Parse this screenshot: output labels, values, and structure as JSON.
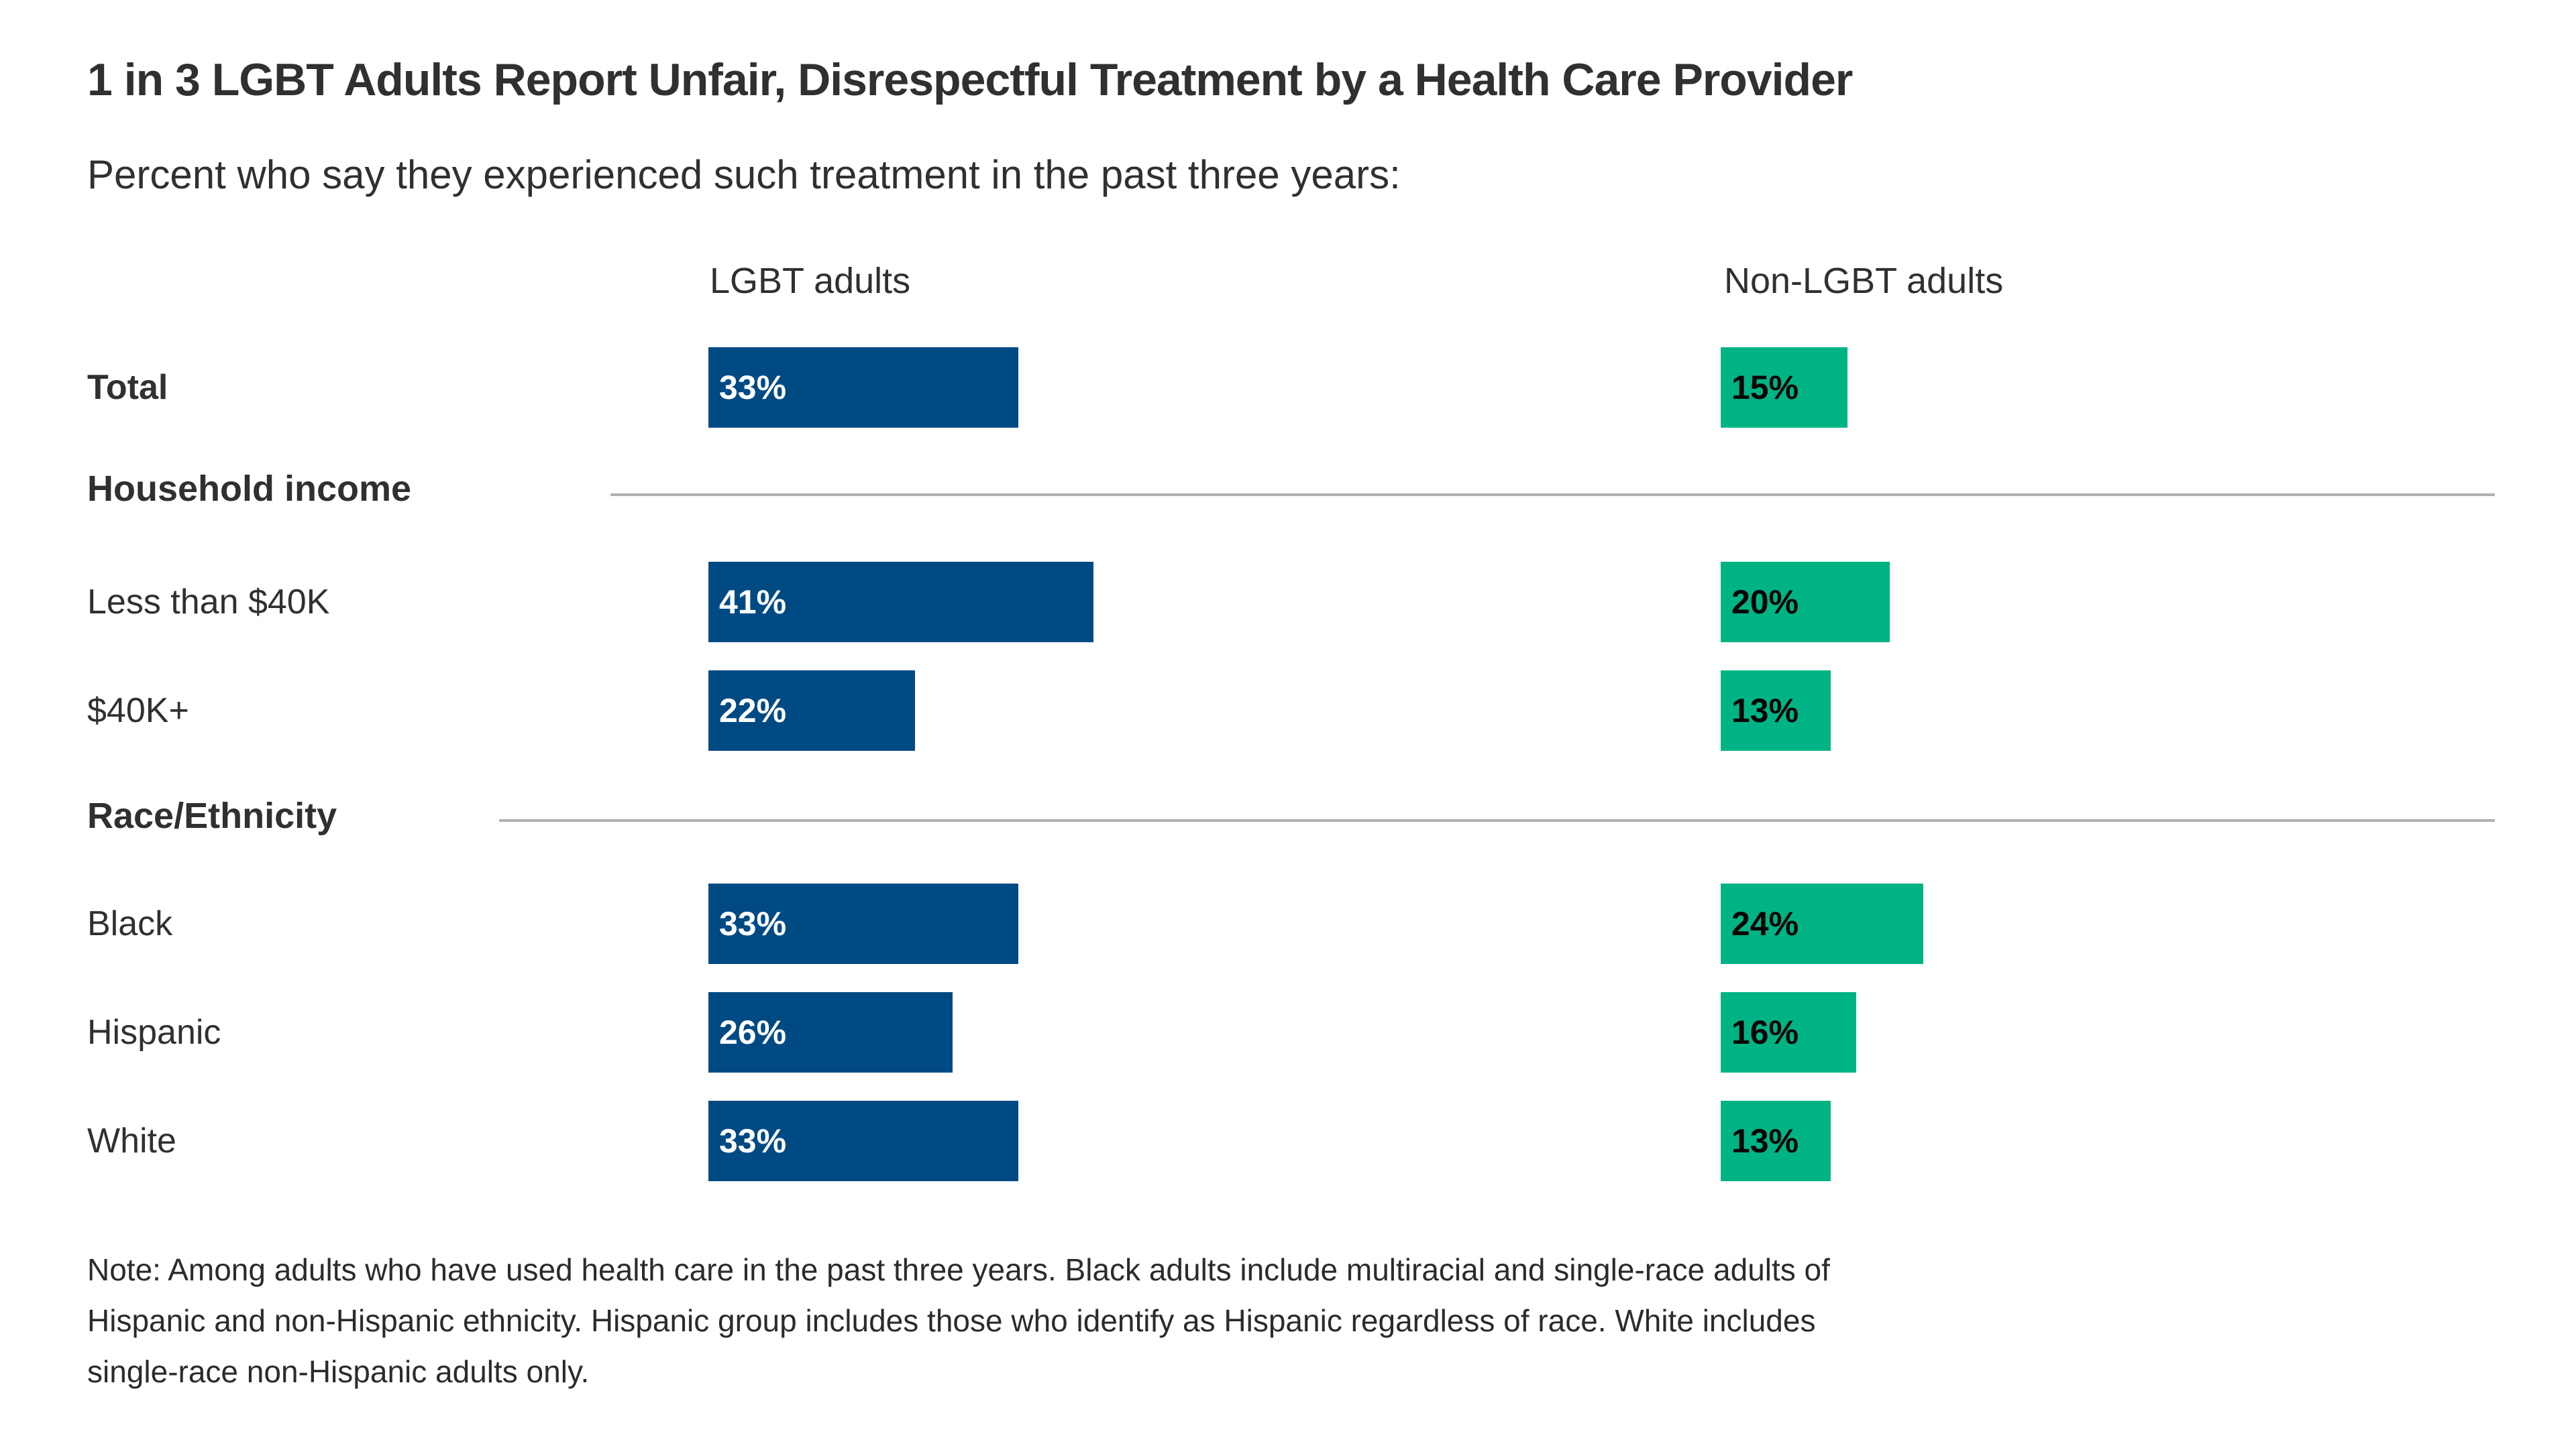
{
  "title": "1 in 3 LGBT Adults Report Unfair, Disrespectful Treatment by a Health Care Provider",
  "subtitle": "Percent who say they experienced such treatment in the past three years:",
  "columns": {
    "lgbt": "LGBT adults",
    "non_lgbt": "Non-LGBT adults"
  },
  "colors": {
    "lgbt_bar": "#004a84",
    "non_lgbt_bar": "#00b384",
    "lgbt_bar_text": "#ffffff",
    "non_lgbt_bar_text": "#050505",
    "text": "#303030",
    "divider": "#b0b0b0"
  },
  "sections": {
    "income": {
      "label": "Household income"
    },
    "race": {
      "label": "Race/Ethnicity"
    }
  },
  "rows": {
    "total": {
      "label": "Total",
      "lgbt_value": 33,
      "lgbt_label": "33%",
      "non_lgbt_value": 15,
      "non_lgbt_label": "15%"
    },
    "less_40k": {
      "label": "Less than $40K",
      "lgbt_value": 41,
      "lgbt_label": "41%",
      "non_lgbt_value": 20,
      "non_lgbt_label": "20%"
    },
    "plus_40k": {
      "label": "$40K+",
      "lgbt_value": 22,
      "lgbt_label": "22%",
      "non_lgbt_value": 13,
      "non_lgbt_label": "13%"
    },
    "black": {
      "label": "Black",
      "lgbt_value": 33,
      "lgbt_label": "33%",
      "non_lgbt_value": 24,
      "non_lgbt_label": "24%"
    },
    "hispanic": {
      "label": "Hispanic",
      "lgbt_value": 26,
      "lgbt_label": "26%",
      "non_lgbt_value": 16,
      "non_lgbt_label": "16%"
    },
    "white": {
      "label": "White",
      "lgbt_value": 33,
      "lgbt_label": "33%",
      "non_lgbt_value": 13,
      "non_lgbt_label": "13%"
    }
  },
  "note": {
    "lines": [
      "Note: Among adults who have used health care in the past three years. Black adults include multiracial and single-race adults of",
      "Hispanic and non-Hispanic ethnicity. Hispanic group includes those who identify as Hispanic regardless of race. White includes",
      "single-race non-Hispanic adults only."
    ]
  },
  "chart_data": {
    "type": "bar",
    "orientation": "horizontal",
    "title": "1 in 3 LGBT Adults Report Unfair, Disrespectful Treatment by a Health Care Provider",
    "subtitle": "Percent who say they experienced such treatment in the past three years:",
    "categories": [
      "Total",
      "Less than $40K",
      "$40K+",
      "Black",
      "Hispanic",
      "White"
    ],
    "series": [
      {
        "name": "LGBT adults",
        "color": "#004a84",
        "values": [
          33,
          41,
          22,
          33,
          26,
          33
        ]
      },
      {
        "name": "Non-LGBT adults",
        "color": "#00b384",
        "values": [
          15,
          20,
          13,
          24,
          16,
          13
        ]
      }
    ],
    "groups": [
      {
        "label": "Household income",
        "categories": [
          "Less than $40K",
          "$40K+"
        ]
      },
      {
        "label": "Race/Ethnicity",
        "categories": [
          "Black",
          "Hispanic",
          "White"
        ]
      }
    ],
    "value_format": "percent",
    "data_labels": "inside-left of each bar",
    "axes": "none; two side-by-side bar columns with headers",
    "legend_position": "column headers above bars",
    "grid": false,
    "note": "Note: Among adults who have used health care in the past three years. Black adults include multiracial and single-race adults of Hispanic and non-Hispanic ethnicity. Hispanic group includes those who identify as Hispanic regardless of race. White includes single-race non-Hispanic adults only."
  }
}
